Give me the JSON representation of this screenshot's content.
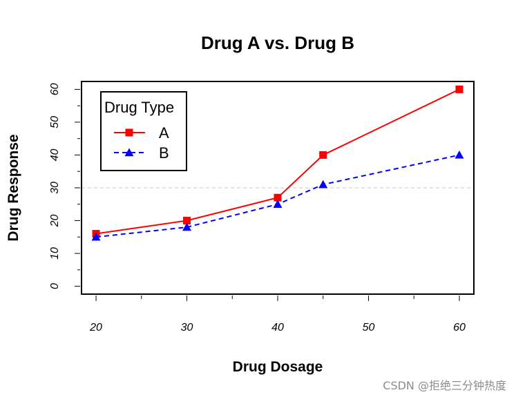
{
  "chart_data": {
    "type": "line",
    "title": "Drug A vs. Drug B",
    "xlabel": "Drug Dosage",
    "ylabel": "Drug Response",
    "x": [
      20,
      30,
      40,
      45,
      60
    ],
    "xlim": [
      18.4,
      61.6
    ],
    "ylim": [
      -2.4,
      62.4
    ],
    "xticks": [
      20,
      30,
      40,
      50,
      60
    ],
    "yticks": [
      0,
      10,
      20,
      30,
      40,
      50,
      60
    ],
    "reference_line": {
      "y": 30,
      "color": "#c8c8c8",
      "style": "dashed"
    },
    "legend": {
      "title": "Drug Type",
      "position": "top-left"
    },
    "series": [
      {
        "name": "A",
        "values": [
          16,
          20,
          27,
          40,
          60
        ],
        "color": "#ff0000",
        "line": "solid",
        "marker": "square"
      },
      {
        "name": "B",
        "values": [
          15,
          18,
          25,
          31,
          40
        ],
        "color": "#0000ff",
        "line": "dashed",
        "marker": "triangle"
      }
    ]
  },
  "watermark": "CSDN @拒绝三分钟热度"
}
